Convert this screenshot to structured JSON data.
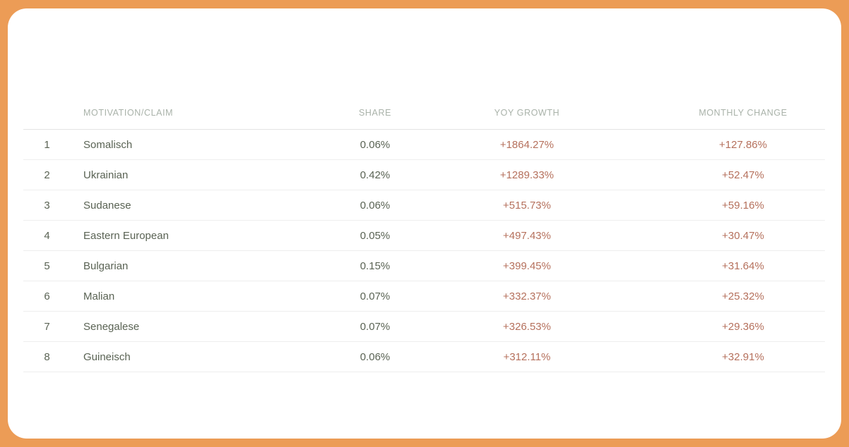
{
  "colors": {
    "frame_orange": "#EC9C56",
    "card_white": "#FFFFFF",
    "header_text": "#A9B2A9",
    "body_text": "#5A6354",
    "accent_value": "#B5705C"
  },
  "table": {
    "columns": {
      "motivation": "MOTIVATION/CLAIM",
      "share": "SHARE",
      "yoy": "YOY GROWTH",
      "monthly": "MONTHLY CHANGE"
    },
    "rows": [
      {
        "rank": "1",
        "name": "Somalisch",
        "share": "0.06%",
        "yoy": "+1864.27%",
        "monthly": "+127.86%"
      },
      {
        "rank": "2",
        "name": "Ukrainian",
        "share": "0.42%",
        "yoy": "+1289.33%",
        "monthly": "+52.47%"
      },
      {
        "rank": "3",
        "name": "Sudanese",
        "share": "0.06%",
        "yoy": "+515.73%",
        "monthly": "+59.16%"
      },
      {
        "rank": "4",
        "name": "Eastern European",
        "share": "0.05%",
        "yoy": "+497.43%",
        "monthly": "+30.47%"
      },
      {
        "rank": "5",
        "name": "Bulgarian",
        "share": "0.15%",
        "yoy": "+399.45%",
        "monthly": "+31.64%"
      },
      {
        "rank": "6",
        "name": "Malian",
        "share": "0.07%",
        "yoy": "+332.37%",
        "monthly": "+25.32%"
      },
      {
        "rank": "7",
        "name": "Senegalese",
        "share": "0.07%",
        "yoy": "+326.53%",
        "monthly": "+29.36%"
      },
      {
        "rank": "8",
        "name": "Guineisch",
        "share": "0.06%",
        "yoy": "+312.11%",
        "monthly": "+32.91%"
      }
    ]
  }
}
